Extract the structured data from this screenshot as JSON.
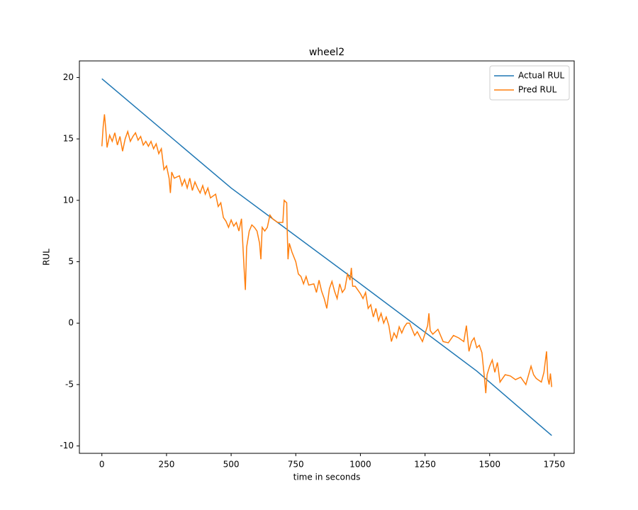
{
  "chart_data": {
    "type": "line",
    "title": "wheel2",
    "x_label": "time in seconds",
    "y_label": "RUL",
    "xlim": [
      -87,
      1827
    ],
    "xticks": [
      0,
      250,
      500,
      750,
      1000,
      1250,
      1500,
      1750
    ],
    "ylim": [
      -10.6,
      21.35
    ],
    "yticks": [
      -10,
      -5,
      0,
      5,
      10,
      15,
      20
    ],
    "legend": "upper right",
    "grid": false,
    "series": [
      {
        "name": "Actual RUL",
        "color": "#1f77b4",
        "x": [
          0,
          500,
          1000,
          1450,
          1740
        ],
        "values": [
          19.9,
          11.0,
          3.2,
          -3.9,
          -9.15
        ]
      },
      {
        "name": "Pred RUL",
        "color": "#ff7f0e",
        "x": [
          0,
          5,
          10,
          15,
          20,
          30,
          40,
          50,
          60,
          70,
          80,
          90,
          100,
          110,
          120,
          130,
          140,
          150,
          160,
          170,
          180,
          190,
          200,
          210,
          220,
          230,
          240,
          250,
          260,
          265,
          270,
          280,
          300,
          310,
          320,
          330,
          340,
          350,
          360,
          370,
          380,
          390,
          400,
          410,
          420,
          440,
          450,
          460,
          470,
          480,
          490,
          500,
          510,
          520,
          530,
          540,
          545,
          550,
          555,
          560,
          570,
          580,
          590,
          600,
          610,
          615,
          620,
          630,
          640,
          650,
          660,
          680,
          700,
          705,
          715,
          717,
          720,
          725,
          735,
          750,
          760,
          770,
          780,
          790,
          800,
          820,
          830,
          840,
          850,
          860,
          870,
          880,
          890,
          900,
          910,
          920,
          930,
          940,
          950,
          960,
          965,
          970,
          980,
          1000,
          1010,
          1020,
          1030,
          1040,
          1050,
          1060,
          1070,
          1080,
          1090,
          1100,
          1110,
          1120,
          1130,
          1140,
          1150,
          1160,
          1170,
          1180,
          1190,
          1200,
          1210,
          1220,
          1240,
          1260,
          1265,
          1270,
          1280,
          1300,
          1320,
          1340,
          1360,
          1380,
          1400,
          1410,
          1420,
          1430,
          1440,
          1450,
          1460,
          1470,
          1480,
          1485,
          1490,
          1500,
          1510,
          1520,
          1530,
          1540,
          1550,
          1560,
          1580,
          1600,
          1620,
          1640,
          1660,
          1670,
          1680,
          1700,
          1710,
          1720,
          1725,
          1730,
          1735,
          1740
        ],
        "values": [
          14.4,
          16,
          17,
          15.8,
          14.3,
          15.3,
          14.8,
          15.5,
          14.5,
          15.2,
          14,
          15,
          15.6,
          14.8,
          15.2,
          15.5,
          14.9,
          15.2,
          14.5,
          14.8,
          14.4,
          14.8,
          14.2,
          14.6,
          13.8,
          14.2,
          12.5,
          12.8,
          11.8,
          10.6,
          12.3,
          11.8,
          12,
          11.2,
          11.7,
          11,
          11.8,
          10.8,
          11.5,
          11,
          10.6,
          11.2,
          10.5,
          11,
          10.2,
          10.5,
          9.5,
          9.8,
          8.6,
          8.3,
          7.8,
          8.4,
          7.9,
          8.2,
          7.5,
          8.5,
          6.5,
          4.5,
          2.7,
          6.2,
          7.5,
          8,
          7.8,
          7.5,
          6.5,
          5.2,
          7.8,
          7.5,
          7.8,
          8.8,
          8.5,
          8.2,
          8.2,
          10,
          9.8,
          7.5,
          5.2,
          6.5,
          5.8,
          5,
          4,
          3.8,
          3.2,
          3.8,
          3.1,
          3.2,
          2.5,
          3.5,
          2.6,
          2,
          1.2,
          2.8,
          3.4,
          2.6,
          2,
          3.2,
          2.5,
          2.8,
          4,
          3.5,
          4.5,
          3,
          3,
          2.4,
          2,
          2.5,
          1.2,
          1.5,
          0.5,
          1.2,
          0.2,
          0.8,
          0,
          0.5,
          -0.2,
          -1.5,
          -0.8,
          -1.2,
          -0.3,
          -0.8,
          -0.3,
          0,
          0,
          -0.5,
          -1,
          -0.7,
          -1.5,
          -0.2,
          0.8,
          -0.6,
          -0.9,
          -0.5,
          -1.5,
          -1.6,
          -1,
          -1.2,
          -1.5,
          -0.2,
          -2.3,
          -1.5,
          -1.2,
          -2,
          -1.8,
          -2.4,
          -4.5,
          -5.7,
          -4.2,
          -3.5,
          -3,
          -4,
          -3.2,
          -4.8,
          -4.5,
          -4.2,
          -4.3,
          -4.6,
          -4.4,
          -5,
          -3.5,
          -4.2,
          -4.5,
          -4.8,
          -4,
          -2.3,
          -4.5,
          -5,
          -4.1,
          -5.2
        ]
      }
    ]
  }
}
